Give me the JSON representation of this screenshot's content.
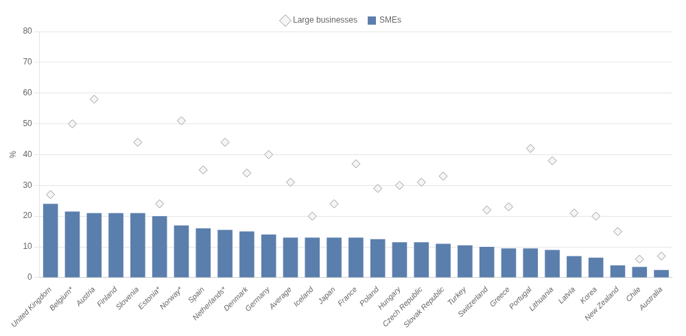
{
  "chart_data": {
    "type": "bar",
    "ylabel": "%",
    "categories": [
      "United Kingdom",
      "Belgium*",
      "Austria",
      "Finland",
      "Slovenia",
      "Estonia*",
      "Norway*",
      "Spain",
      "Netherlands*",
      "Denmark",
      "Germany",
      "Average",
      "Iceland",
      "Japan",
      "France",
      "Poland",
      "Hungary",
      "Czech Republic",
      "Slovak Republic",
      "Turkey",
      "Switzerland",
      "Greece",
      "Portugal",
      "Lithuania",
      "Latvia",
      "Korea",
      "New Zealand",
      "Chile",
      "Australia"
    ],
    "series": [
      {
        "name": "SMEs",
        "type": "bar",
        "color": "#5b7fad",
        "values": [
          24,
          21.5,
          21,
          21,
          21,
          20,
          17,
          16,
          15.5,
          15,
          14,
          13,
          13,
          13,
          13,
          12.5,
          11.5,
          11.5,
          11,
          10.5,
          10,
          9.5,
          9.5,
          9,
          7,
          6.5,
          4,
          3.5,
          2.5
        ]
      },
      {
        "name": "Large businesses",
        "type": "scatter",
        "marker": "diamond",
        "color": "#999999",
        "values": [
          27,
          50,
          58,
          null,
          44,
          24,
          51,
          35,
          44,
          34,
          40,
          31,
          20,
          24,
          37,
          29,
          30,
          31,
          33,
          null,
          22,
          23,
          42,
          38,
          21,
          20,
          15,
          6,
          7
        ]
      }
    ],
    "ylim": [
      0,
      80
    ],
    "yticks": [
      0,
      10,
      20,
      30,
      40,
      50,
      60,
      70,
      80
    ],
    "grid": true,
    "legend": "top"
  }
}
